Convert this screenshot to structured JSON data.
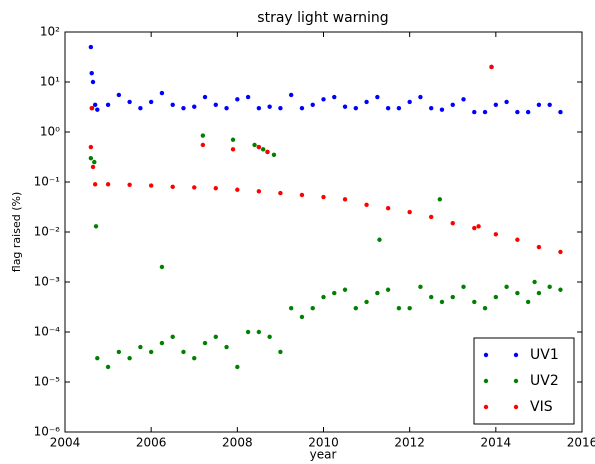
{
  "chart_data": {
    "type": "scatter",
    "title": "stray light warning",
    "x_label": "year",
    "y_label": "flag raised (%)",
    "xlim": [
      2004,
      2016
    ],
    "xticks": [
      2004,
      2006,
      2008,
      2010,
      2012,
      2014,
      2016
    ],
    "ylim": [
      1e-06,
      100
    ],
    "log_y": true,
    "yticks": [
      {
        "value": 1e-06,
        "label": "10⁻⁶"
      },
      {
        "value": 1e-05,
        "label": "10⁻⁵"
      },
      {
        "value": 0.0001,
        "label": "10⁻⁴"
      },
      {
        "value": 0.001,
        "label": "10⁻³"
      },
      {
        "value": 0.01,
        "label": "10⁻²"
      },
      {
        "value": 0.1,
        "label": "10⁻¹"
      },
      {
        "value": 1,
        "label": "10⁰"
      },
      {
        "value": 10,
        "label": "10¹"
      },
      {
        "value": 100,
        "label": "10²"
      }
    ],
    "grid": false,
    "legend": "lower right",
    "series": [
      {
        "name": "UV1",
        "color": "#0000ff",
        "x": [
          2004.6,
          2004.62,
          2004.65,
          2004.7,
          2004.75,
          2005,
          2005.25,
          2005.5,
          2005.75,
          2006,
          2006.25,
          2006.5,
          2006.75,
          2007,
          2007.25,
          2007.5,
          2007.75,
          2008,
          2008.25,
          2008.5,
          2008.75,
          2009,
          2009.25,
          2009.5,
          2009.75,
          2010,
          2010.25,
          2010.5,
          2010.75,
          2011,
          2011.25,
          2011.5,
          2011.75,
          2012,
          2012.25,
          2012.5,
          2012.75,
          2013,
          2013.25,
          2013.5,
          2013.75,
          2014,
          2014.25,
          2014.5,
          2014.75,
          2015,
          2015.25,
          2015.5,
          2013.9
        ],
        "values": [
          50,
          15,
          10,
          3.5,
          2.8,
          3.5,
          5.5,
          4,
          3,
          4,
          6,
          3.5,
          3,
          3.2,
          5,
          3.5,
          3,
          4.5,
          5,
          3,
          3.2,
          3,
          5.5,
          3,
          3.5,
          4.5,
          5,
          3.2,
          3,
          4,
          5,
          3,
          3,
          4,
          5,
          3,
          2.8,
          3.5,
          4.5,
          2.5,
          2.5,
          3.5,
          4,
          2.5,
          2.5,
          3.5,
          3.5,
          2.5,
          20
        ]
      },
      {
        "name": "UV2",
        "color": "#008000",
        "x": [
          2004.6,
          2004.63,
          2004.68,
          2004.72,
          2006.25,
          2007.2,
          2007.9,
          2008.4,
          2008.5,
          2008.6,
          2008.7,
          2008.85,
          2011.3,
          2012.7,
          2014.9,
          2004.75,
          2005,
          2005.25,
          2005.5,
          2005.75,
          2006,
          2006.25,
          2006.5,
          2006.75,
          2007,
          2007.25,
          2007.5,
          2007.75,
          2008,
          2008.25,
          2008.5,
          2008.75,
          2009,
          2009.25,
          2009.5,
          2009.75,
          2010,
          2010.25,
          2010.5,
          2010.75,
          2011,
          2011.25,
          2011.5,
          2011.75,
          2012,
          2012.25,
          2012.5,
          2012.75,
          2013,
          2013.25,
          2013.5,
          2013.75,
          2014,
          2014.25,
          2014.5,
          2014.75,
          2015,
          2015.25,
          2015.5
        ],
        "values": [
          0.3,
          3,
          0.25,
          0.013,
          0.002,
          0.85,
          0.7,
          0.55,
          0.5,
          0.45,
          0.4,
          0.35,
          0.007,
          0.045,
          0.001,
          3e-05,
          2e-05,
          4e-05,
          3e-05,
          5e-05,
          4e-05,
          6e-05,
          8e-05,
          4e-05,
          3e-05,
          6e-05,
          8e-05,
          5e-05,
          2e-05,
          0.0001,
          0.0001,
          8e-05,
          4e-05,
          0.0003,
          0.0002,
          0.0003,
          0.0005,
          0.0006,
          0.0007,
          0.0003,
          0.0004,
          0.0006,
          0.0007,
          0.0003,
          0.0003,
          0.0008,
          0.0005,
          0.0004,
          0.0005,
          0.0008,
          0.0004,
          0.0003,
          0.0005,
          0.0008,
          0.0006,
          0.0004,
          0.0006,
          0.0008,
          0.0007
        ]
      },
      {
        "name": "VIS",
        "color": "#ff0000",
        "x": [
          2004.6,
          2004.62,
          2004.65,
          2004.7,
          2007.2,
          2007.9,
          2008.5,
          2008.7,
          2013.9,
          2013.6,
          2005,
          2005.5,
          2006,
          2006.5,
          2007,
          2007.5,
          2008,
          2008.5,
          2009,
          2009.5,
          2010,
          2010.5,
          2011,
          2011.5,
          2012,
          2012.5,
          2013,
          2013.5,
          2014,
          2014.5,
          2015,
          2015.5
        ],
        "values": [
          0.5,
          3,
          0.2,
          0.09,
          0.55,
          0.45,
          0.5,
          0.4,
          20,
          0.013,
          0.09,
          0.088,
          0.085,
          0.08,
          0.078,
          0.075,
          0.07,
          0.065,
          0.06,
          0.055,
          0.05,
          0.045,
          0.035,
          0.03,
          0.025,
          0.02,
          0.015,
          0.012,
          0.009,
          0.007,
          0.005,
          0.004
        ]
      }
    ]
  }
}
